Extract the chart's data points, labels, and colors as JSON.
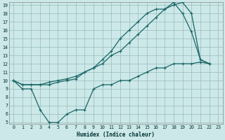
{
  "xlabel": "Humidex (Indice chaleur)",
  "xlim": [
    0,
    23
  ],
  "ylim": [
    5,
    19
  ],
  "xticks": [
    0,
    1,
    2,
    3,
    4,
    5,
    6,
    7,
    8,
    9,
    10,
    11,
    12,
    13,
    14,
    15,
    16,
    17,
    18,
    19,
    20,
    21,
    22,
    23
  ],
  "yticks": [
    5,
    6,
    7,
    8,
    9,
    10,
    11,
    12,
    13,
    14,
    15,
    16,
    17,
    18,
    19
  ],
  "bg_color": "#cce8e8",
  "grid_color": "#99bbbb",
  "line_color": "#1a6666",
  "line1_x": [
    0,
    1,
    2,
    3,
    4,
    5,
    6,
    7,
    8,
    9,
    10,
    11,
    12,
    13,
    14,
    15,
    16,
    17,
    18,
    19,
    20,
    21,
    22
  ],
  "line1_y": [
    10,
    9,
    9,
    6.5,
    5,
    5,
    6,
    6.5,
    6.5,
    9,
    9.5,
    9.5,
    10,
    10,
    10.5,
    11,
    11.5,
    11.5,
    12,
    12,
    12,
    12.2,
    12
  ],
  "line2_x": [
    0,
    1,
    2,
    3,
    4,
    5,
    6,
    7,
    8,
    9,
    10,
    11,
    12,
    13,
    14,
    15,
    16,
    17,
    18,
    19,
    20,
    21,
    22
  ],
  "line2_y": [
    10,
    9.5,
    9.5,
    9.5,
    9.8,
    10,
    10.2,
    10.5,
    11,
    11.5,
    12,
    13,
    13.5,
    14.5,
    15.5,
    16.5,
    17.5,
    18.5,
    19,
    19.3,
    18,
    12.5,
    12
  ],
  "line3_x": [
    0,
    1,
    2,
    3,
    4,
    5,
    6,
    7,
    8,
    9,
    10,
    11,
    12,
    13,
    14,
    15,
    16,
    17,
    18,
    19,
    20,
    21,
    22
  ],
  "line3_y": [
    10,
    9.5,
    9.5,
    9.5,
    9.5,
    9.8,
    10,
    10.2,
    11,
    11.5,
    12.5,
    13.5,
    15,
    16,
    17,
    18,
    18.5,
    18.5,
    19.3,
    18,
    15.8,
    12.5,
    12
  ]
}
